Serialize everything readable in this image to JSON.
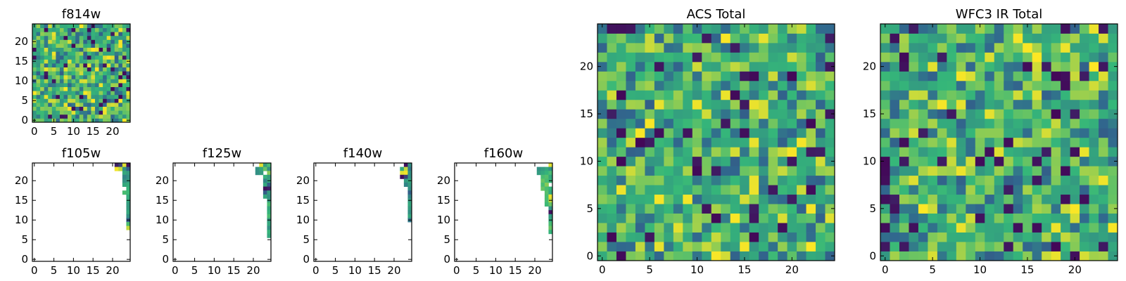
{
  "colormap": [
    "#440154",
    "#31688e",
    "#35b779",
    "#fde725"
  ],
  "chart_data": [
    {
      "type": "heatmap",
      "title": "f814w",
      "xticks": [
        "0",
        "5",
        "10",
        "15",
        "20"
      ],
      "yticks": [
        "0",
        "5",
        "10",
        "15",
        "20"
      ],
      "xlim": [
        -0.5,
        24.5
      ],
      "ylim": [
        -0.5,
        24.5
      ],
      "grid": false,
      "coverage": "full",
      "nx": 25,
      "ny": 25
    },
    {
      "type": "heatmap",
      "title": "f105w",
      "xticks": [
        "0",
        "5",
        "10",
        "15",
        "20"
      ],
      "yticks": [
        "0",
        "5",
        "10",
        "15",
        "20"
      ],
      "xlim": [
        -0.5,
        24.5
      ],
      "ylim": [
        -0.5,
        24.5
      ],
      "grid": false,
      "coverage": "partial",
      "nx": 25,
      "ny": 25,
      "filled_cells": [
        [
          21,
          24,
          0.1
        ],
        [
          22,
          24,
          0.2
        ],
        [
          23,
          24,
          0.95
        ],
        [
          24,
          24,
          0.05
        ],
        [
          21,
          23,
          0.98
        ],
        [
          22,
          23,
          0.9
        ],
        [
          23,
          23,
          0.5
        ],
        [
          24,
          23,
          0.3
        ],
        [
          23,
          22,
          0.6
        ],
        [
          24,
          22,
          0.55
        ],
        [
          23,
          21,
          0.45
        ],
        [
          24,
          21,
          0.5
        ],
        [
          23,
          20,
          0.5
        ],
        [
          24,
          20,
          0.55
        ],
        [
          23,
          19,
          0.6
        ],
        [
          24,
          19,
          0.62
        ],
        [
          24,
          18,
          0.65
        ],
        [
          23,
          17,
          0.7
        ],
        [
          24,
          17,
          0.68
        ],
        [
          24,
          16,
          0.62
        ],
        [
          24,
          15,
          0.6
        ],
        [
          24,
          14,
          0.55
        ],
        [
          24,
          13,
          0.55
        ],
        [
          24,
          12,
          0.6
        ],
        [
          24,
          11,
          0.5
        ],
        [
          24,
          10,
          0.3
        ],
        [
          24,
          9,
          0.7
        ],
        [
          24,
          8,
          0.9
        ]
      ]
    },
    {
      "type": "heatmap",
      "title": "f125w",
      "xticks": [
        "0",
        "5",
        "10",
        "15",
        "20"
      ],
      "yticks": [
        "0",
        "5",
        "10",
        "15",
        "20"
      ],
      "xlim": [
        -0.5,
        24.5
      ],
      "ylim": [
        -0.5,
        24.5
      ],
      "grid": false,
      "coverage": "partial",
      "nx": 25,
      "ny": 25,
      "filled_cells": [
        [
          22,
          24,
          0.95
        ],
        [
          23,
          24,
          0.55
        ],
        [
          24,
          24,
          0.7
        ],
        [
          21,
          23,
          0.5
        ],
        [
          22,
          23,
          0.6
        ],
        [
          23,
          23,
          0.75
        ],
        [
          24,
          23,
          0.5
        ],
        [
          21,
          22,
          0.5
        ],
        [
          22,
          22,
          0.55
        ],
        [
          24,
          22,
          0.8
        ],
        [
          23,
          21,
          0.65
        ],
        [
          24,
          21,
          0.55
        ],
        [
          23,
          20,
          0.45
        ],
        [
          24,
          20,
          0.6
        ],
        [
          23,
          19,
          0.6
        ],
        [
          24,
          19,
          0.3
        ],
        [
          23,
          18,
          0.05
        ],
        [
          24,
          18,
          0.1
        ],
        [
          23,
          17,
          0.3
        ],
        [
          24,
          17,
          0.55
        ],
        [
          23,
          16,
          0.6
        ],
        [
          24,
          16,
          0.5
        ],
        [
          24,
          15,
          0.55
        ],
        [
          24,
          14,
          0.7
        ],
        [
          24,
          13,
          0.6
        ],
        [
          24,
          12,
          0.65
        ],
        [
          24,
          11,
          0.7
        ],
        [
          24,
          10,
          0.55
        ],
        [
          24,
          9,
          0.6
        ],
        [
          24,
          8,
          0.5
        ],
        [
          24,
          7,
          0.65
        ],
        [
          24,
          6,
          0.6
        ]
      ]
    },
    {
      "type": "heatmap",
      "title": "f140w",
      "xticks": [
        "0",
        "5",
        "10",
        "15",
        "20"
      ],
      "yticks": [
        "0",
        "5",
        "10",
        "15",
        "20"
      ],
      "xlim": [
        -0.5,
        24.5
      ],
      "ylim": [
        -0.5,
        24.5
      ],
      "grid": false,
      "coverage": "partial",
      "nx": 25,
      "ny": 25,
      "filled_cells": [
        [
          23,
          24,
          0.05
        ],
        [
          24,
          24,
          0.5
        ],
        [
          22,
          23,
          0.6
        ],
        [
          23,
          23,
          0.9
        ],
        [
          24,
          23,
          0.4
        ],
        [
          22,
          22,
          0.95
        ],
        [
          23,
          22,
          0.98
        ],
        [
          24,
          22,
          0.5
        ],
        [
          22,
          21,
          0.05
        ],
        [
          23,
          21,
          0.2
        ],
        [
          24,
          21,
          0.5
        ],
        [
          23,
          20,
          0.55
        ],
        [
          24,
          20,
          0.6
        ],
        [
          23,
          19,
          0.45
        ],
        [
          24,
          19,
          0.55
        ],
        [
          24,
          18,
          0.5
        ],
        [
          24,
          17,
          0.3
        ],
        [
          24,
          16,
          0.45
        ],
        [
          24,
          15,
          0.55
        ],
        [
          24,
          14,
          0.6
        ],
        [
          24,
          13,
          0.55
        ],
        [
          24,
          12,
          0.5
        ],
        [
          24,
          11,
          0.6
        ],
        [
          24,
          10,
          0.4
        ]
      ]
    },
    {
      "type": "heatmap",
      "title": "f160w",
      "xticks": [
        "0",
        "5",
        "10",
        "15",
        "20"
      ],
      "yticks": [
        "0",
        "5",
        "10",
        "15",
        "20"
      ],
      "xlim": [
        -0.5,
        24.5
      ],
      "ylim": [
        -0.5,
        24.5
      ],
      "grid": false,
      "coverage": "partial",
      "nx": 25,
      "ny": 25,
      "filled_cells": [
        [
          24,
          24,
          0.95
        ],
        [
          21,
          23,
          0.5
        ],
        [
          22,
          23,
          0.55
        ],
        [
          23,
          23,
          0.6
        ],
        [
          24,
          23,
          0.5
        ],
        [
          21,
          22,
          0.55
        ],
        [
          22,
          22,
          0.6
        ],
        [
          23,
          22,
          0.65
        ],
        [
          24,
          22,
          0.7
        ],
        [
          22,
          21,
          0.7
        ],
        [
          23,
          21,
          0.72
        ],
        [
          24,
          21,
          0.6
        ],
        [
          22,
          20,
          0.75
        ],
        [
          23,
          20,
          0.7
        ],
        [
          24,
          20,
          0.65
        ],
        [
          22,
          19,
          0.7
        ],
        [
          23,
          19,
          0.8
        ],
        [
          22,
          18,
          0.75
        ],
        [
          23,
          18,
          0.7
        ],
        [
          24,
          18,
          0.65
        ],
        [
          23,
          17,
          0.72
        ],
        [
          24,
          17,
          0.6
        ],
        [
          23,
          16,
          0.7
        ],
        [
          24,
          16,
          0.96
        ],
        [
          23,
          15,
          0.7
        ],
        [
          24,
          15,
          0.9
        ],
        [
          23,
          14,
          0.68
        ],
        [
          24,
          14,
          0.75
        ],
        [
          24,
          13,
          0.5
        ],
        [
          24,
          12,
          0.05
        ],
        [
          24,
          11,
          0.55
        ],
        [
          24,
          10,
          0.6
        ],
        [
          24,
          9,
          0.7
        ],
        [
          24,
          8,
          0.75
        ],
        [
          24,
          7,
          0.65
        ]
      ]
    },
    {
      "type": "heatmap",
      "title": "ACS Total",
      "xticks": [
        "0",
        "5",
        "10",
        "15",
        "20"
      ],
      "yticks": [
        "0",
        "5",
        "10",
        "15",
        "20"
      ],
      "xlim": [
        -0.5,
        24.5
      ],
      "ylim": [
        -0.5,
        24.5
      ],
      "grid": false,
      "coverage": "full",
      "nx": 25,
      "ny": 25
    },
    {
      "type": "heatmap",
      "title": "WFC3 IR Total",
      "xticks": [
        "0",
        "5",
        "10",
        "15",
        "20"
      ],
      "yticks": [
        "0",
        "5",
        "10",
        "15",
        "20"
      ],
      "xlim": [
        -0.5,
        24.5
      ],
      "ylim": [
        -0.5,
        24.5
      ],
      "grid": false,
      "coverage": "full",
      "nx": 25,
      "ny": 25
    }
  ]
}
